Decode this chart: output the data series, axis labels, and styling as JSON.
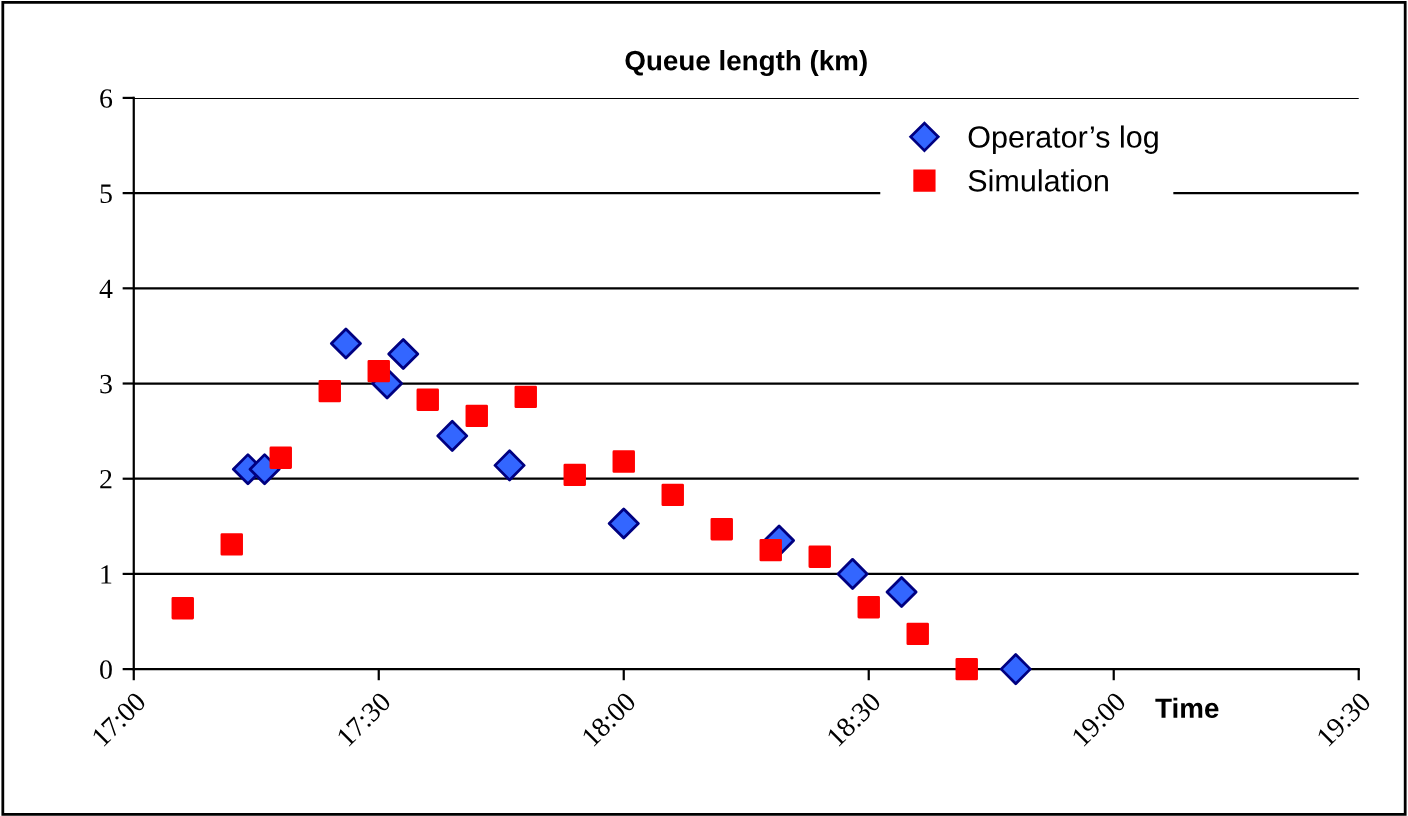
{
  "chart_data": {
    "type": "scatter",
    "title": "Queue length (km)",
    "xlabel": "Time",
    "series": [
      {
        "name": "Operator’s log",
        "color": "#3366ff",
        "marker": "diamond",
        "x": [
          17.233,
          17.267,
          17.433,
          17.517,
          17.55,
          17.65,
          17.767,
          18.0,
          18.317,
          18.467,
          18.567,
          18.8
        ],
        "values": [
          2.1,
          2.1,
          3.42,
          3.0,
          3.31,
          2.45,
          2.14,
          1.53,
          1.35,
          1.0,
          0.81,
          0
        ]
      },
      {
        "name": "Simulation",
        "color": "#ff0000",
        "marker": "square",
        "x": [
          17.1,
          17.2,
          17.3,
          17.4,
          17.5,
          17.6,
          17.7,
          17.8,
          17.9,
          18.0,
          18.1,
          18.2,
          18.3,
          18.4,
          18.5,
          18.6,
          18.7
        ],
        "values": [
          0.64,
          1.31,
          2.22,
          2.92,
          3.13,
          2.83,
          2.66,
          2.86,
          2.04,
          2.18,
          1.83,
          1.47,
          1.25,
          1.18,
          0.65,
          0.37,
          0
        ]
      }
    ],
    "xlim": [
      17,
      19.5
    ],
    "xticks": [
      {
        "value": 17,
        "label": "17:00"
      },
      {
        "value": 17.5,
        "label": "17:30"
      },
      {
        "value": 18,
        "label": "18:00"
      },
      {
        "value": 18.5,
        "label": "18:30"
      },
      {
        "value": 19,
        "label": "19:00"
      },
      {
        "value": 19.5,
        "label": "19:30"
      }
    ],
    "ylim": [
      0,
      6
    ],
    "yticks": [
      0,
      1,
      2,
      3,
      4,
      5,
      6
    ],
    "grid": "y",
    "legend": "top right"
  }
}
